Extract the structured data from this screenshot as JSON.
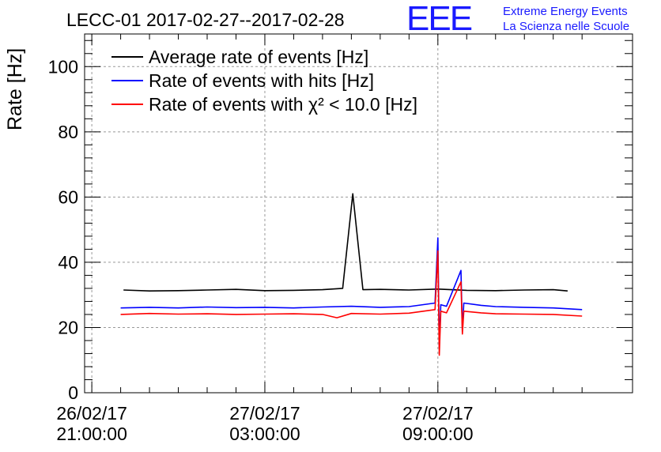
{
  "chart_data": {
    "type": "line",
    "title": "LECC-01 2017-02-27--2017-02-28",
    "xlabel": "",
    "ylabel": "Rate [Hz]",
    "ylim": [
      0,
      110
    ],
    "yticks": [
      0,
      20,
      40,
      60,
      80,
      100
    ],
    "xlim_hours": [
      -0.25,
      18.75
    ],
    "xticks": [
      {
        "hours": 0,
        "line1": "26/02/17",
        "line2": "21:00:00"
      },
      {
        "hours": 6,
        "line1": "27/02/17",
        "line2": "03:00:00"
      },
      {
        "hours": 12,
        "line1": "27/02/17",
        "line2": "09:00:00"
      }
    ],
    "grid": true,
    "legend": "top-left",
    "series": [
      {
        "name": "Average rate of events [Hz]",
        "color": "#000000",
        "x_hours": [
          1.1,
          2.0,
          3.0,
          4.0,
          5.0,
          6.0,
          7.0,
          8.0,
          8.7,
          9.05,
          9.4,
          10.0,
          11.0,
          12.0,
          13.0,
          14.0,
          15.0,
          16.0,
          16.5
        ],
        "values": [
          31.5,
          31.2,
          31.3,
          31.5,
          31.7,
          31.3,
          31.4,
          31.6,
          32.0,
          61.0,
          31.6,
          31.7,
          31.5,
          31.8,
          31.4,
          31.3,
          31.5,
          31.6,
          31.2
        ]
      },
      {
        "name": "Rate of events with hits [Hz]",
        "color": "#0000ff",
        "x_hours": [
          1.0,
          2.0,
          3.0,
          4.0,
          5.0,
          6.0,
          7.0,
          8.0,
          9.0,
          10.0,
          11.0,
          11.9,
          12.0,
          12.05,
          12.1,
          12.3,
          12.8,
          12.85,
          12.9,
          13.5,
          14.0,
          15.0,
          16.0,
          17.0
        ],
        "values": [
          26.0,
          26.2,
          26.0,
          26.3,
          26.1,
          26.2,
          26.0,
          26.3,
          26.5,
          26.2,
          26.4,
          27.5,
          47.5,
          14.0,
          27.0,
          26.5,
          37.5,
          19.0,
          27.5,
          26.8,
          26.4,
          26.2,
          26.0,
          25.5
        ]
      },
      {
        "name": "Rate of events with χ² < 10.0 [Hz]",
        "color": "#ff0000",
        "x_hours": [
          1.0,
          2.0,
          3.0,
          4.0,
          5.0,
          6.0,
          7.0,
          8.0,
          8.5,
          9.0,
          10.0,
          11.0,
          11.9,
          12.0,
          12.05,
          12.1,
          12.3,
          12.8,
          12.85,
          12.9,
          13.5,
          14.0,
          15.0,
          16.0,
          17.0
        ],
        "values": [
          24.0,
          24.3,
          24.1,
          24.2,
          24.0,
          24.1,
          24.2,
          24.0,
          23.0,
          24.3,
          24.1,
          24.4,
          25.5,
          43.5,
          11.5,
          25.0,
          24.5,
          34.0,
          18.0,
          25.0,
          24.5,
          24.2,
          24.1,
          24.0,
          23.5
        ]
      }
    ]
  },
  "logo": {
    "mark": "EEE",
    "line1": "Extreme Energy Events",
    "line2": "La Scienza nelle Scuole",
    "color": "#1a1aff"
  }
}
